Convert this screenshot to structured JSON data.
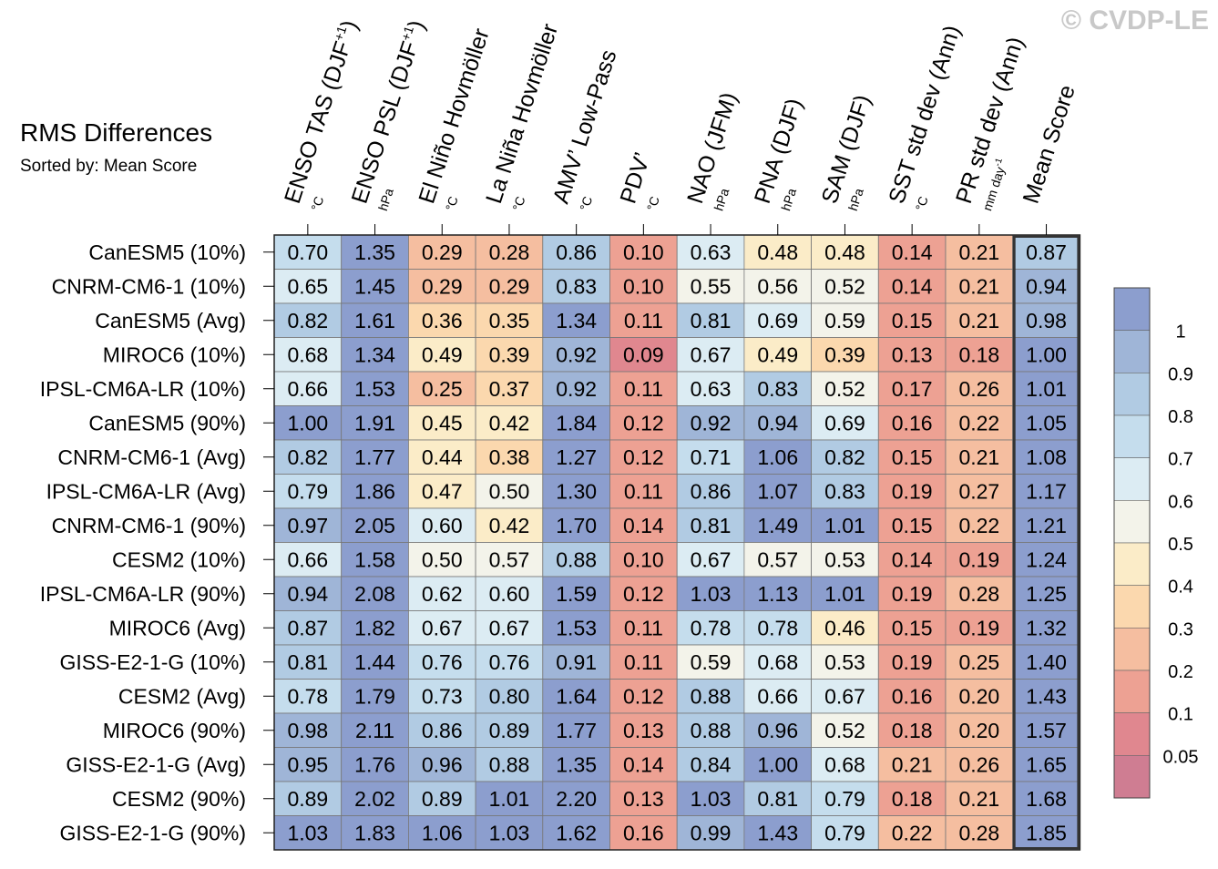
{
  "watermark": "© CVDP-LE",
  "chart_data": {
    "type": "heatmap",
    "title": "RMS Differences",
    "subtitle": "Sorted by: Mean Score",
    "columns": [
      {
        "label": "ENSO TAS (DJF",
        "sup": "+1",
        "close": ")",
        "unit": "°C"
      },
      {
        "label": "ENSO PSL (DJF",
        "sup": "+1",
        "close": ")",
        "unit": "hPa"
      },
      {
        "label": "El Niño Hovmöller",
        "sup": "",
        "close": "",
        "unit": "°C"
      },
      {
        "label": "La Niña Hovmöller",
        "sup": "",
        "close": "",
        "unit": "°C"
      },
      {
        "label": "AMV’ Low-Pass",
        "sup": "",
        "close": "",
        "unit": "°C"
      },
      {
        "label": "PDV’",
        "sup": "",
        "close": "",
        "unit": "°C"
      },
      {
        "label": "NAO (JFM)",
        "sup": "",
        "close": "",
        "unit": "hPa"
      },
      {
        "label": "PNA (DJF)",
        "sup": "",
        "close": "",
        "unit": "hPa"
      },
      {
        "label": "SAM (DJF)",
        "sup": "",
        "close": "",
        "unit": "hPa"
      },
      {
        "label": "SST std dev (Ann)",
        "sup": "",
        "close": "",
        "unit": "°C"
      },
      {
        "label": "PR std dev (Ann)",
        "sup": "",
        "close": "",
        "unit": "mm day",
        "unit_sup": "-1"
      },
      {
        "label": "Mean Score",
        "sup": "",
        "close": "",
        "unit": ""
      }
    ],
    "rows": [
      "CanESM5 (10%)",
      "CNRM-CM6-1 (10%)",
      "CanESM5 (Avg)",
      "MIROC6 (10%)",
      "IPSL-CM6A-LR (10%)",
      "CanESM5 (90%)",
      "CNRM-CM6-1 (Avg)",
      "IPSL-CM6A-LR (Avg)",
      "CNRM-CM6-1 (90%)",
      "CESM2 (10%)",
      "IPSL-CM6A-LR (90%)",
      "MIROC6 (Avg)",
      "GISS-E2-1-G (10%)",
      "CESM2 (Avg)",
      "MIROC6 (90%)",
      "GISS-E2-1-G (Avg)",
      "CESM2 (90%)",
      "GISS-E2-1-G (90%)"
    ],
    "values": [
      [
        "0.70",
        "1.35",
        "0.29",
        "0.28",
        "0.86",
        "0.10",
        "0.63",
        "0.48",
        "0.48",
        "0.14",
        "0.21",
        "0.87"
      ],
      [
        "0.65",
        "1.45",
        "0.29",
        "0.29",
        "0.83",
        "0.10",
        "0.55",
        "0.56",
        "0.52",
        "0.14",
        "0.21",
        "0.94"
      ],
      [
        "0.82",
        "1.61",
        "0.36",
        "0.35",
        "1.34",
        "0.11",
        "0.81",
        "0.69",
        "0.59",
        "0.15",
        "0.21",
        "0.98"
      ],
      [
        "0.68",
        "1.34",
        "0.49",
        "0.39",
        "0.92",
        "0.09",
        "0.67",
        "0.49",
        "0.39",
        "0.13",
        "0.18",
        "1.00"
      ],
      [
        "0.66",
        "1.53",
        "0.25",
        "0.37",
        "0.92",
        "0.11",
        "0.63",
        "0.83",
        "0.52",
        "0.17",
        "0.26",
        "1.01"
      ],
      [
        "1.00",
        "1.91",
        "0.45",
        "0.42",
        "1.84",
        "0.12",
        "0.92",
        "0.94",
        "0.69",
        "0.16",
        "0.22",
        "1.05"
      ],
      [
        "0.82",
        "1.77",
        "0.44",
        "0.38",
        "1.27",
        "0.12",
        "0.71",
        "1.06",
        "0.82",
        "0.15",
        "0.21",
        "1.08"
      ],
      [
        "0.79",
        "1.86",
        "0.47",
        "0.50",
        "1.30",
        "0.11",
        "0.86",
        "1.07",
        "0.83",
        "0.19",
        "0.27",
        "1.17"
      ],
      [
        "0.97",
        "2.05",
        "0.60",
        "0.42",
        "1.70",
        "0.14",
        "0.81",
        "1.49",
        "1.01",
        "0.15",
        "0.22",
        "1.21"
      ],
      [
        "0.66",
        "1.58",
        "0.50",
        "0.57",
        "0.88",
        "0.10",
        "0.67",
        "0.57",
        "0.53",
        "0.14",
        "0.19",
        "1.24"
      ],
      [
        "0.94",
        "2.08",
        "0.62",
        "0.60",
        "1.59",
        "0.12",
        "1.03",
        "1.13",
        "1.01",
        "0.19",
        "0.28",
        "1.25"
      ],
      [
        "0.87",
        "1.82",
        "0.67",
        "0.67",
        "1.53",
        "0.11",
        "0.78",
        "0.78",
        "0.46",
        "0.15",
        "0.19",
        "1.32"
      ],
      [
        "0.81",
        "1.44",
        "0.76",
        "0.76",
        "0.91",
        "0.11",
        "0.59",
        "0.68",
        "0.53",
        "0.19",
        "0.25",
        "1.40"
      ],
      [
        "0.78",
        "1.79",
        "0.73",
        "0.80",
        "1.64",
        "0.12",
        "0.88",
        "0.66",
        "0.67",
        "0.16",
        "0.20",
        "1.43"
      ],
      [
        "0.98",
        "2.11",
        "0.86",
        "0.89",
        "1.77",
        "0.13",
        "0.88",
        "0.96",
        "0.52",
        "0.18",
        "0.20",
        "1.57"
      ],
      [
        "0.95",
        "1.76",
        "0.96",
        "0.88",
        "1.35",
        "0.14",
        "0.84",
        "1.00",
        "0.68",
        "0.21",
        "0.26",
        "1.65"
      ],
      [
        "0.89",
        "2.02",
        "0.89",
        "1.01",
        "2.20",
        "0.13",
        "1.03",
        "0.81",
        "0.79",
        "0.18",
        "0.21",
        "1.68"
      ],
      [
        "1.03",
        "1.83",
        "1.06",
        "1.03",
        "1.62",
        "0.16",
        "0.99",
        "1.43",
        "0.79",
        "0.22",
        "0.28",
        "1.85"
      ]
    ],
    "colorbar": {
      "labels": [
        "1",
        "0.9",
        "0.8",
        "0.7",
        "0.6",
        "0.5",
        "0.4",
        "0.3",
        "0.2",
        "0.1",
        "0.05"
      ],
      "colors": [
        "#8c9ece",
        "#9fb5d7",
        "#b1cbe3",
        "#c5dded",
        "#dcecf3",
        "#f3f3ea",
        "#fbecc8",
        "#fbd8ae",
        "#f5bea0",
        "#eda193",
        "#e0878f",
        "#cf7d92"
      ]
    }
  }
}
